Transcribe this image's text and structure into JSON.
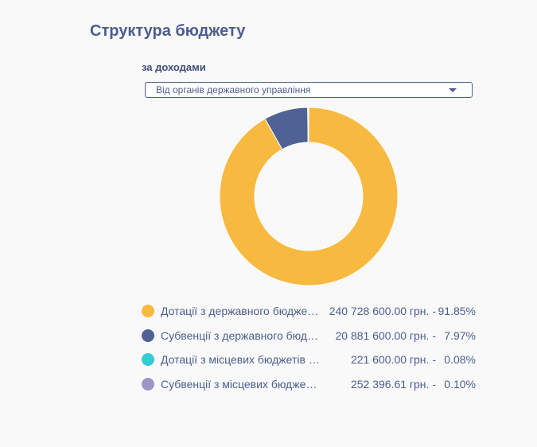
{
  "title": "Структура бюджету",
  "subtitle": "за доходами",
  "dropdown": {
    "selected": "Від органів державного управління"
  },
  "colors": {
    "series": [
      "#f7b940",
      "#4f6195",
      "#33ccd3",
      "#9b98c9"
    ],
    "text": "#4c5d8e"
  },
  "chart_data": {
    "type": "pie",
    "donut": true,
    "categories": [
      "Дотації з державного бюдже…",
      "Субвенції з державного бюд…",
      "Дотації з місцевих бюджетів …",
      "Субвенції з місцевих бюдже…"
    ],
    "values": [
      240728600.0,
      20881600.0,
      221600.0,
      252396.61
    ],
    "percents": [
      91.85,
      7.97,
      0.08,
      0.1
    ],
    "legend_placement": "bottom"
  },
  "legend": [
    {
      "label": "Дотації з державного бюдже…",
      "amount": "240 728 600.00 грн.",
      "sep": "-",
      "pct": "91.85%"
    },
    {
      "label": "Субвенції з державного бюд…",
      "amount": "20 881 600.00 грн.",
      "sep": "-",
      "pct": "7.97%"
    },
    {
      "label": "Дотації з місцевих бюджетів …",
      "amount": "221 600.00 грн.",
      "sep": "-",
      "pct": "0.08%"
    },
    {
      "label": "Субвенції з місцевих бюдже…",
      "amount": "252 396.61 грн.",
      "sep": "-",
      "pct": "0.10%"
    }
  ]
}
